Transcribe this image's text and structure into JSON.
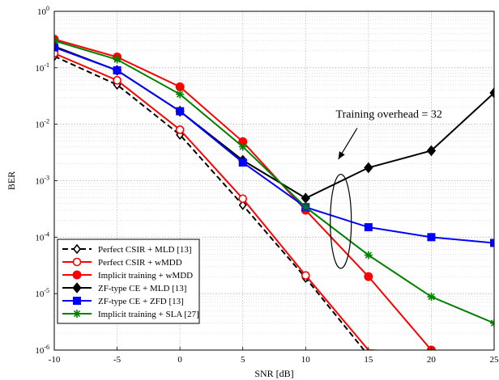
{
  "chart_data": {
    "type": "line",
    "xlabel": "SNR [dB]",
    "ylabel": "BER",
    "xlim": [
      -10,
      25
    ],
    "ylim_log10": [
      -6,
      0
    ],
    "log_y": true,
    "grid": true,
    "legend_position": "bottom-left",
    "x_ticks": [
      "-10",
      "-5",
      "0",
      "5",
      "10",
      "15",
      "20",
      "25"
    ],
    "y_tick_bases": [
      "10",
      "10",
      "10",
      "10",
      "10",
      "10",
      "10"
    ],
    "y_tick_exponents": [
      "-6",
      "-5",
      "-4",
      "-3",
      "-2",
      "-1",
      "0"
    ],
    "annotation": "Training overhead = 32",
    "series": [
      {
        "name": "Perfect CSIR + MLD [13]",
        "color": "#000000",
        "dash": true,
        "marker": "open-diamond",
        "x": [
          -10,
          -5,
          0,
          5,
          10,
          15
        ],
        "y": [
          0.16,
          0.05,
          0.0065,
          0.00037,
          1.9e-05,
          8e-07
        ],
        "marker_x": [
          -10,
          -5,
          0,
          5,
          10
        ]
      },
      {
        "name": "Perfect CSIR + wMDD",
        "color": "#ff0000",
        "dash": false,
        "marker": "open-circle",
        "x": [
          -10,
          -5,
          0,
          5,
          10,
          15,
          20
        ],
        "y": [
          0.18,
          0.06,
          0.008,
          0.00048,
          2.1e-05,
          1e-06,
          9e-07
        ],
        "marker_x": [
          -10,
          -5,
          0,
          5,
          10
        ]
      },
      {
        "name": "Implicit training + wMDD",
        "color": "#ff0000",
        "dash": false,
        "marker": "filled-circle",
        "x": [
          -10,
          -5,
          0,
          5,
          10,
          15,
          20
        ],
        "y": [
          0.32,
          0.155,
          0.046,
          0.0049,
          0.0003,
          2e-05,
          1e-06
        ]
      },
      {
        "name": "ZF-type CE + MLD [13]",
        "color": "#000000",
        "dash": false,
        "marker": "filled-diamond",
        "x": [
          -10,
          -5,
          0,
          5,
          10,
          15,
          20,
          25
        ],
        "y": [
          0.24,
          0.09,
          0.017,
          0.0023,
          0.00049,
          0.0017,
          0.0034,
          0.036
        ]
      },
      {
        "name": "ZF-type CE + ZFD [13]",
        "color": "#0000ff",
        "dash": false,
        "marker": "filled-square",
        "x": [
          -10,
          -5,
          0,
          5,
          10,
          15,
          20,
          25
        ],
        "y": [
          0.23,
          0.09,
          0.017,
          0.0021,
          0.00034,
          0.00015,
          0.0001,
          7.9e-05
        ]
      },
      {
        "name": "Implicit training + SLA  [27]",
        "color": "#008000",
        "dash": false,
        "marker": "asterisk",
        "x": [
          -10,
          -5,
          0,
          5,
          10,
          15,
          20,
          25
        ],
        "y": [
          0.3,
          0.14,
          0.034,
          0.004,
          0.00034,
          4.8e-05,
          8.8e-06,
          3e-06
        ]
      }
    ]
  }
}
